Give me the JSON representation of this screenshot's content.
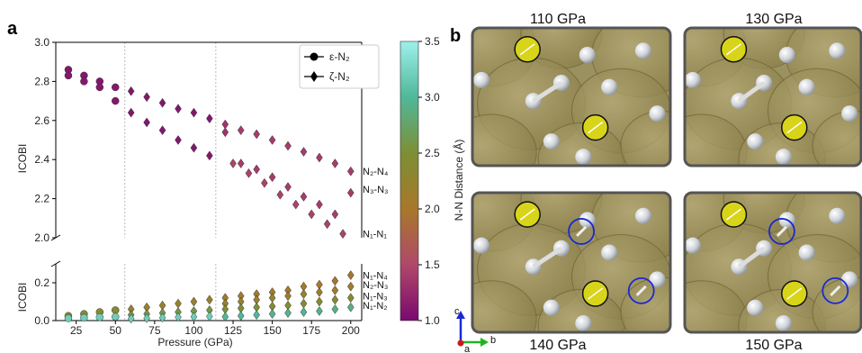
{
  "panel_a_label": "a",
  "panel_b_label": "b",
  "chart_data": {
    "type": "scatter",
    "xlabel": "Pressure (GPa)",
    "ylabel": "ICOBI",
    "xlim": [
      12,
      207
    ],
    "ylim_top": [
      2.0,
      3.0
    ],
    "ylim_bottom": [
      0.0,
      0.3
    ],
    "xticks": [
      25,
      50,
      75,
      100,
      125,
      150,
      175,
      200
    ],
    "yticks_top": [
      2.0,
      2.2,
      2.4,
      2.6,
      2.8,
      3.0
    ],
    "yticks_bottom": [
      0.0,
      0.2
    ],
    "phase_boundaries": [
      56,
      114
    ],
    "legend": [
      {
        "marker": "circle",
        "label": "ε-N₂"
      },
      {
        "marker": "diamond",
        "label": "ζ-N₂"
      }
    ],
    "colorbar": {
      "label": "N-N Distance (Å)",
      "min": 1.0,
      "max": 3.5,
      "ticks": [
        1.0,
        1.5,
        2.0,
        2.5,
        3.0,
        3.5
      ]
    },
    "bond_labels_top": [
      {
        "text": "N₂-N₄",
        "y": 2.34
      },
      {
        "text": "N₃-N₃",
        "y": 2.25
      },
      {
        "text": "N₁-N₁",
        "y": 2.02
      }
    ],
    "bond_labels_bottom": [
      {
        "text": "N₁-N₄",
        "y": 0.24
      },
      {
        "text": "N₂-N₃",
        "y": 0.19
      },
      {
        "text": "N₁-N₃",
        "y": 0.13
      },
      {
        "text": "N₁-N₂",
        "y": 0.08
      }
    ],
    "series": [
      {
        "marker": "circle",
        "x": [
          20,
          20,
          30,
          30,
          40,
          40,
          50,
          50
        ],
        "y": [
          2.86,
          2.83,
          2.83,
          2.8,
          2.8,
          2.77,
          2.77,
          2.7
        ],
        "d": [
          1.1,
          1.1,
          1.1,
          1.1,
          1.1,
          1.1,
          1.1,
          1.1
        ]
      },
      {
        "marker": "diamond",
        "x": [
          60,
          60,
          70,
          70,
          80,
          80,
          90,
          90,
          100,
          100,
          110,
          110
        ],
        "y": [
          2.75,
          2.64,
          2.72,
          2.59,
          2.69,
          2.55,
          2.66,
          2.5,
          2.64,
          2.46,
          2.61,
          2.42
        ],
        "d": [
          1.1,
          1.1,
          1.1,
          1.1,
          1.1,
          1.1,
          1.1,
          1.1,
          1.1,
          1.1,
          1.1,
          1.1
        ]
      },
      {
        "marker": "diamond",
        "x": [
          120,
          120,
          130,
          130,
          140,
          140,
          150,
          150,
          160,
          160,
          170,
          170,
          180,
          180,
          190,
          190,
          200,
          200
        ],
        "y": [
          2.58,
          2.54,
          2.55,
          2.38,
          2.53,
          2.35,
          2.5,
          2.31,
          2.47,
          2.26,
          2.44,
          2.21,
          2.41,
          2.17,
          2.38,
          2.12,
          2.34,
          2.23
        ],
        "d": [
          1.35,
          1.35,
          1.4,
          1.4,
          1.4,
          1.4,
          1.4,
          1.4,
          1.4,
          1.4,
          1.4,
          1.4,
          1.4,
          1.4,
          1.4,
          1.4,
          1.4,
          1.4
        ]
      },
      {
        "marker": "diamond",
        "x": [
          125,
          135,
          145,
          155,
          165,
          175,
          185,
          195
        ],
        "y": [
          2.38,
          2.33,
          2.28,
          2.22,
          2.17,
          2.12,
          2.07,
          2.02
        ],
        "d": [
          1.45,
          1.45,
          1.45,
          1.45,
          1.45,
          1.45,
          1.45,
          1.45
        ]
      },
      {
        "marker": "circle",
        "x": [
          20,
          30,
          40,
          50,
          20,
          30,
          40,
          50
        ],
        "y": [
          0.025,
          0.035,
          0.045,
          0.055,
          0.012,
          0.015,
          0.018,
          0.02
        ],
        "d": [
          2.4,
          2.4,
          2.4,
          2.4,
          3.2,
          3.2,
          3.2,
          3.2
        ]
      },
      {
        "marker": "diamond",
        "x": [
          60,
          70,
          80,
          90,
          100,
          110,
          60,
          70,
          80,
          90,
          100,
          110,
          60,
          70,
          80,
          90,
          100,
          110
        ],
        "y": [
          0.06,
          0.07,
          0.08,
          0.09,
          0.1,
          0.11,
          0.03,
          0.035,
          0.04,
          0.045,
          0.05,
          0.055,
          0.01,
          0.012,
          0.015,
          0.018,
          0.02,
          0.022
        ],
        "d": [
          2.15,
          2.15,
          2.15,
          2.15,
          2.15,
          2.15,
          2.6,
          2.6,
          2.6,
          2.6,
          2.6,
          2.6,
          3.2,
          3.2,
          3.2,
          3.2,
          3.2,
          3.2
        ]
      },
      {
        "marker": "diamond",
        "x": [
          120,
          130,
          140,
          150,
          160,
          170,
          180,
          190,
          200,
          120,
          130,
          140,
          150,
          160,
          170,
          180,
          190,
          200,
          120,
          130,
          140,
          150,
          160,
          170,
          180,
          190,
          200,
          120,
          130,
          140,
          150,
          160,
          170,
          180,
          190,
          200
        ],
        "y": [
          0.12,
          0.13,
          0.14,
          0.15,
          0.16,
          0.18,
          0.19,
          0.21,
          0.24,
          0.09,
          0.1,
          0.11,
          0.12,
          0.13,
          0.14,
          0.15,
          0.16,
          0.18,
          0.06,
          0.065,
          0.07,
          0.075,
          0.08,
          0.09,
          0.1,
          0.11,
          0.12,
          0.02,
          0.025,
          0.03,
          0.035,
          0.04,
          0.045,
          0.05,
          0.06,
          0.07
        ],
        "d": [
          2.05,
          2.05,
          2.05,
          2.05,
          2.0,
          2.0,
          2.0,
          1.95,
          1.95,
          2.2,
          2.2,
          2.2,
          2.2,
          2.15,
          2.15,
          2.15,
          2.1,
          2.1,
          2.5,
          2.5,
          2.5,
          2.45,
          2.45,
          2.45,
          2.4,
          2.4,
          2.4,
          3.0,
          3.0,
          3.0,
          2.95,
          2.95,
          2.95,
          2.9,
          2.9,
          2.9
        ]
      }
    ]
  },
  "structures": [
    {
      "pressure": "110 GPa"
    },
    {
      "pressure": "130 GPa"
    },
    {
      "pressure": "140 GPa"
    },
    {
      "pressure": "150 GPa"
    }
  ],
  "axes_labels": {
    "c": "c",
    "b": "b",
    "a": "a"
  }
}
